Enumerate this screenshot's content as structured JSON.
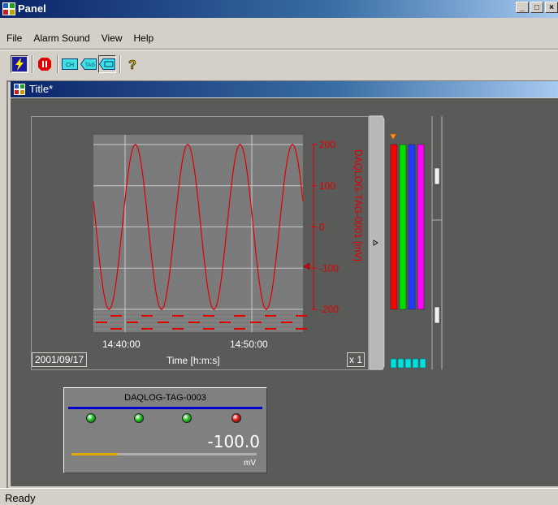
{
  "window": {
    "title": "Panel"
  },
  "menu": [
    "File",
    "Alarm Sound",
    "View",
    "Help"
  ],
  "toolbar": [
    {
      "icon": "lightning-icon",
      "pressed": true
    },
    {
      "icon": "stop-icon",
      "pressed": false
    },
    {
      "icon": "channel-icon",
      "label": "CH",
      "pressed": false
    },
    {
      "icon": "tag-icon",
      "label": "TAG",
      "pressed": false
    },
    {
      "icon": "group-icon",
      "pressed": true
    },
    {
      "icon": "help-icon",
      "pressed": false
    }
  ],
  "child_window": {
    "title": "Title*"
  },
  "trend": {
    "date": "2001/09/17",
    "x_label": "Time [h:m:s]",
    "scale_label": "x 1",
    "series_label": "DAQLOG-TAG-0001 [mV]",
    "chart_data": {
      "type": "line",
      "x_tick_labels": [
        "14:40:00",
        "14:50:00"
      ],
      "y_tick_labels": [
        "200",
        "100",
        "0",
        "-100",
        "-200"
      ],
      "ylim": [
        -200,
        200
      ],
      "series": [
        {
          "name": "DAQLOG-TAG-0001",
          "color": "#e00000",
          "shape": "sine",
          "amplitude": 200,
          "cycles": 4
        }
      ],
      "cursor_value": -100
    }
  },
  "tag_panel": {
    "name": "DAQLOG-TAG-0003",
    "value": "-100.0",
    "unit": "mV",
    "leds": [
      "#1fc21f",
      "#1fc21f",
      "#1fc21f",
      "#e01010"
    ],
    "bar_fill_fraction": 0.25
  },
  "bars": {
    "colors": [
      "#ff0000",
      "#00e000",
      "#1e3cff",
      "#ff00ff"
    ],
    "indicator_color": "#00e0e0"
  },
  "status": {
    "text": "Ready"
  },
  "colors": {
    "titlebar": "#0a246a",
    "panel_bg": "#5a5a58",
    "plot_bg": "#7b7b7b",
    "series": "#e00000"
  }
}
